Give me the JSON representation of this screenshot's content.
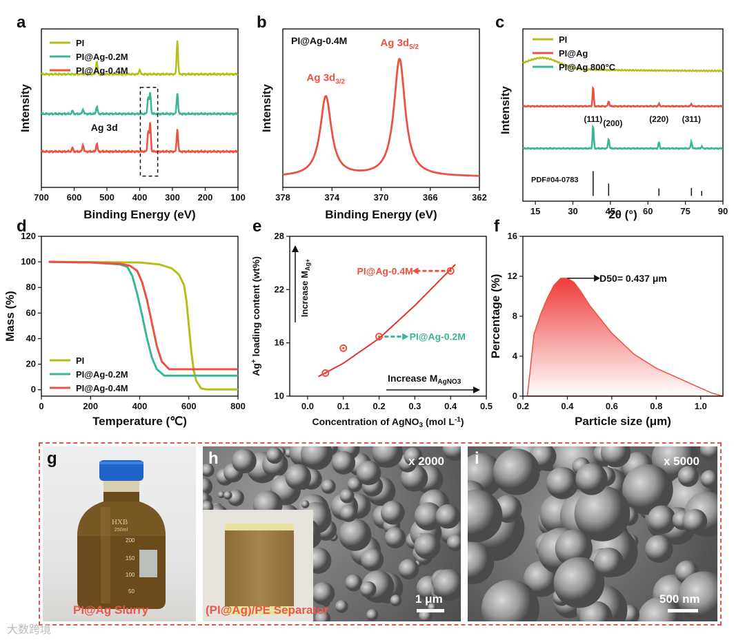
{
  "colors": {
    "pi": "#b6bf1a",
    "ag02": "#3ab597",
    "ag04": "#ea5242",
    "red": "#e5312a",
    "axis": "#111111"
  },
  "panels": {
    "a": "a",
    "b": "b",
    "c": "c",
    "d": "d",
    "e": "e",
    "f": "f",
    "g": "g",
    "h": "h",
    "i": "i"
  },
  "chart_data": [
    {
      "id": "a",
      "type": "line",
      "xlabel": "Binding Energy (eV)",
      "ylabel": "Intensity",
      "xlim": [
        700,
        100
      ],
      "xticks": [
        700,
        600,
        500,
        400,
        300,
        200,
        100
      ],
      "legend": [
        "PI",
        "PI@Ag-0.2M",
        "PI@Ag-0.4M"
      ],
      "annotation": "Ag 3d",
      "series": [
        {
          "name": "PI",
          "baseline": 3.0,
          "peaks": [
            [
              531,
              0.35
            ],
            [
              400,
              0.12
            ],
            [
              285,
              0.9
            ]
          ]
        },
        {
          "name": "PI@Ag-0.2M",
          "baseline": 1.95,
          "peaks": [
            [
              605,
              0.08
            ],
            [
              573,
              0.12
            ],
            [
              531,
              0.2
            ],
            [
              374,
              0.45
            ],
            [
              368,
              0.55
            ],
            [
              285,
              0.55
            ]
          ]
        },
        {
          "name": "PI@Ag-0.4M",
          "baseline": 0.95,
          "peaks": [
            [
              605,
              0.1
            ],
            [
              573,
              0.18
            ],
            [
              531,
              0.22
            ],
            [
              374,
              0.55
            ],
            [
              368,
              0.75
            ],
            [
              285,
              0.6
            ]
          ]
        }
      ]
    },
    {
      "id": "b",
      "type": "line",
      "xlabel": "Binding Energy (eV)",
      "ylabel": "Intensity",
      "title": "PI@Ag-0.4M",
      "xlim": [
        378,
        362
      ],
      "xticks": [
        378,
        374,
        370,
        366,
        362
      ],
      "peaks": [
        [
          374.5,
          0.68,
          "Ag 3d",
          "3/2"
        ],
        [
          368.5,
          1.0,
          "Ag 3d",
          "5/2"
        ]
      ]
    },
    {
      "id": "c",
      "type": "line",
      "xlabel": "2θ (°)",
      "ylabel": "Intensity",
      "xlim": [
        10,
        90
      ],
      "xticks": [
        15,
        30,
        45,
        60,
        75,
        90
      ],
      "legend": [
        "PI",
        "PI@Ag",
        "PI@Ag 800°C"
      ],
      "reference": "PDF#04-0783",
      "ref_lines": [
        [
          38.1,
          1.0
        ],
        [
          44.3,
          0.5
        ],
        [
          64.4,
          0.3
        ],
        [
          77.4,
          0.32
        ],
        [
          81.5,
          0.2
        ]
      ],
      "miller": [
        [
          38.1,
          "(111)"
        ],
        [
          44.3,
          "(200)"
        ],
        [
          64.4,
          "(220)"
        ],
        [
          77.4,
          "(311)"
        ]
      ],
      "series": [
        {
          "name": "PI",
          "baseline": 3.0,
          "hump": [
            18,
            0.3
          ]
        },
        {
          "name": "PI@Ag",
          "baseline": 2.0,
          "peaks": [
            [
              38.1,
              0.55
            ],
            [
              44.3,
              0.15
            ],
            [
              64.4,
              0.07
            ],
            [
              77.4,
              0.07
            ]
          ]
        },
        {
          "name": "PI@Ag 800°C",
          "baseline": 0.8,
          "peaks": [
            [
              38.1,
              0.65
            ],
            [
              44.3,
              0.28
            ],
            [
              64.4,
              0.18
            ],
            [
              77.4,
              0.2
            ],
            [
              81.5,
              0.06
            ]
          ]
        }
      ]
    },
    {
      "id": "d",
      "type": "line",
      "xlabel": "Temperature (℃)",
      "ylabel": "Mass (%)",
      "xlim": [
        0,
        800
      ],
      "ylim": [
        -5,
        120
      ],
      "xticks": [
        0,
        200,
        400,
        600,
        800
      ],
      "yticks": [
        0,
        20,
        40,
        60,
        80,
        100,
        120
      ],
      "legend": [
        "PI",
        "PI@Ag-0.2M",
        "PI@Ag-0.4M"
      ],
      "series": [
        {
          "name": "PI",
          "x": [
            30,
            200,
            400,
            480,
            530,
            560,
            580,
            590,
            600,
            610,
            620,
            630,
            650,
            670,
            800
          ],
          "y": [
            100,
            99.8,
            99.5,
            98,
            95,
            90,
            82,
            70,
            50,
            30,
            15,
            7,
            1,
            0.3,
            0.3
          ]
        },
        {
          "name": "PI@Ag-0.2M",
          "x": [
            30,
            200,
            320,
            350,
            370,
            390,
            410,
            430,
            450,
            470,
            500,
            600,
            800
          ],
          "y": [
            100,
            99.5,
            98,
            96,
            89,
            75,
            58,
            40,
            25,
            16,
            11,
            11,
            11
          ]
        },
        {
          "name": "PI@Ag-0.4M",
          "x": [
            30,
            200,
            320,
            360,
            390,
            410,
            430,
            450,
            470,
            490,
            520,
            600,
            800
          ],
          "y": [
            100,
            99.5,
            98.5,
            97,
            93,
            84,
            70,
            52,
            34,
            22,
            16,
            16,
            16
          ]
        }
      ]
    },
    {
      "id": "e",
      "type": "scatter",
      "xlabel": "Concentration of AgNO",
      "xlabel_sub": "3",
      "xlabel_tail": " (mol L",
      "xlabel_sup": "-1",
      "xlabel_end": ")",
      "ylabel": "Ag",
      "ylabel_sup": "+",
      "ylabel_tail": " loading content (wt%)",
      "xlim": [
        -0.05,
        0.5
      ],
      "ylim": [
        10,
        28
      ],
      "xticks": [
        0.0,
        0.1,
        0.2,
        0.3,
        0.4,
        0.5
      ],
      "yticks": [
        10,
        16,
        22,
        28
      ],
      "points": [
        [
          0.05,
          12.6
        ],
        [
          0.1,
          15.4
        ],
        [
          0.2,
          16.7
        ],
        [
          0.4,
          24.1
        ]
      ],
      "fit": {
        "x": [
          0.03,
          0.1,
          0.2,
          0.3,
          0.42
        ],
        "y": [
          12.2,
          13.7,
          16.5,
          20.2,
          25.1
        ]
      },
      "annotations": {
        "increase_m_ag": "Increase M",
        "increase_m_ag_sub": "Ag+",
        "increase_m_agno3": "Increase M",
        "increase_m_agno3_sub": "AgNO3",
        "pi_ag_04": "PI@Ag-0.4M",
        "pi_ag_02": "PI@Ag-0.2M"
      }
    },
    {
      "id": "f",
      "type": "area",
      "xlabel": "Particle size (μm)",
      "ylabel": "Percentage (%)",
      "xlim": [
        0.2,
        1.1
      ],
      "ylim": [
        0,
        16
      ],
      "xticks": [
        0.2,
        0.4,
        0.6,
        0.8,
        1.0
      ],
      "yticks": [
        0,
        4,
        8,
        12,
        16
      ],
      "annotation": "D50= 0.437 μm",
      "x": [
        0.22,
        0.23,
        0.25,
        0.28,
        0.31,
        0.34,
        0.37,
        0.4,
        0.43,
        0.46,
        0.5,
        0.55,
        0.6,
        0.7,
        0.8,
        0.9,
        1.0,
        1.05,
        1.1
      ],
      "y": [
        0,
        2.0,
        6.2,
        8.2,
        9.8,
        11.1,
        11.8,
        11.8,
        11.4,
        10.5,
        9.1,
        7.7,
        6.3,
        4.2,
        2.8,
        1.8,
        0.8,
        0.3,
        0
      ]
    }
  ],
  "photos": {
    "g": {
      "caption": "PI@Ag Slurry",
      "labels": [
        "200",
        "150",
        "100",
        "50"
      ],
      "brand": "HXB",
      "volume": "250ml"
    },
    "h": {
      "magnification": "x 2000",
      "caption": "(PI@Ag)/PE Separator",
      "scale": "1 μm"
    },
    "i": {
      "magnification": "x 5000",
      "scale": "500 nm"
    }
  },
  "watermark": "大数跨境"
}
